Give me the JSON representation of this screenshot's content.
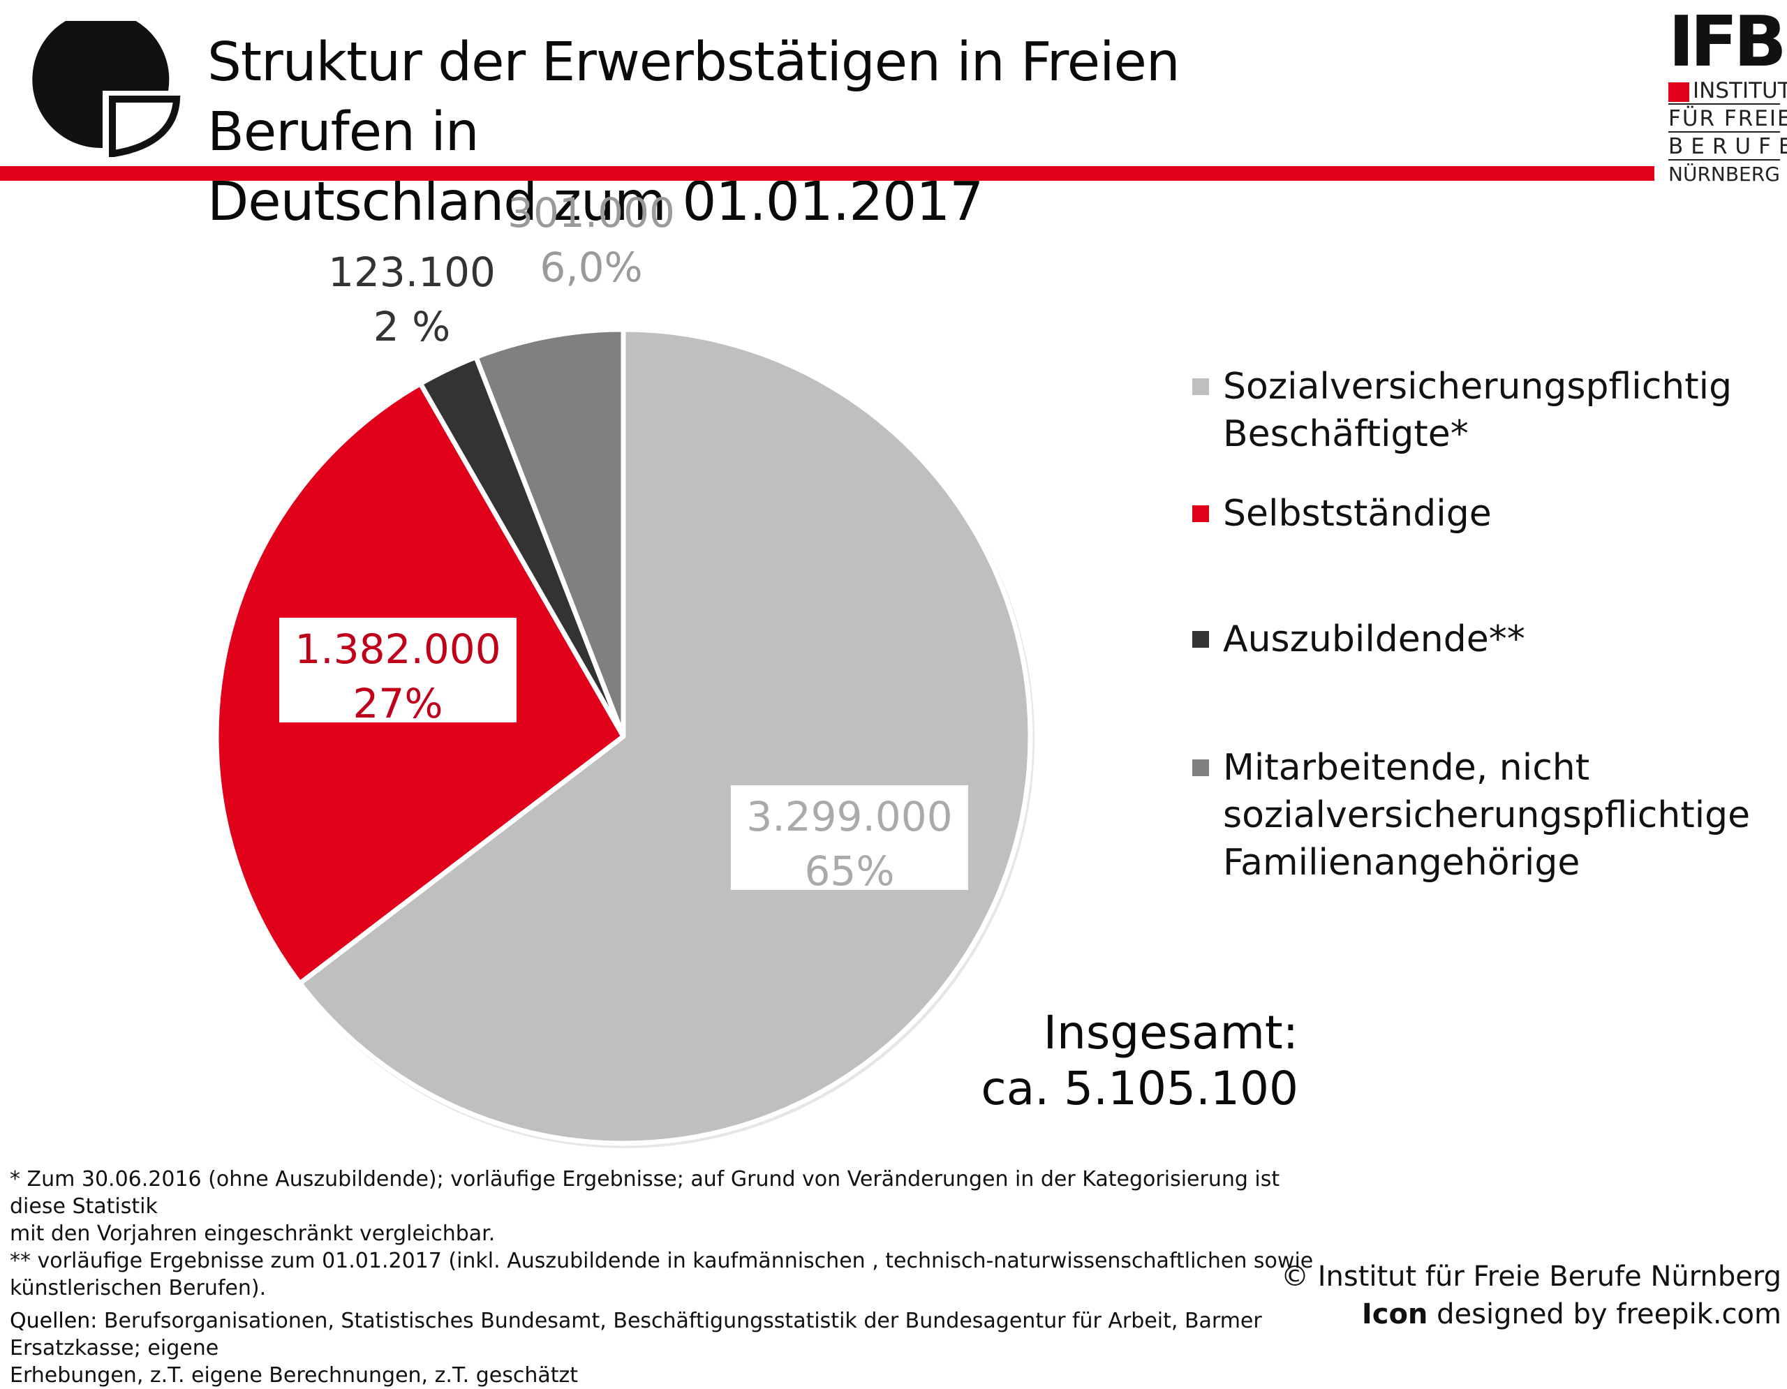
{
  "header": {
    "title_line1": "Struktur der Erwerbstätigen in Freien Berufen in",
    "title_line2": "Deutschland zum 01.01.2017",
    "accent_color": "#e1001a"
  },
  "logo_left": {
    "icon": "pie-d-logo-icon"
  },
  "ifb_logo": {
    "abbreviation": "IFB",
    "line1": "INSTITUT",
    "line2": "FÜR FREIE",
    "line3": "BERUFE",
    "line4": "NÜRNBERG"
  },
  "chart_data": {
    "type": "pie",
    "title": "Struktur der Erwerbstätigen in Freien Berufen in Deutschland zum 01.01.2017",
    "slices": [
      {
        "label": "Sozialversicherungspflichtig Beschäftigte*",
        "value": 3299000,
        "value_label": "3.299.000",
        "percent_label": "65%",
        "color": "#bfbfbf",
        "text_color": "#aaaaaa"
      },
      {
        "label": "Selbstständige",
        "value": 1382000,
        "value_label": "1.382.000",
        "percent_label": "27%",
        "color": "#e1001a",
        "text_color": "#c0001a"
      },
      {
        "label": "Auszubildende**",
        "value": 123100,
        "value_label": "123.100",
        "percent_label": "2 %",
        "color": "#333333",
        "text_color": "#333333"
      },
      {
        "label": "Mitarbeitende, nicht sozialversicherungspflichtige Familienangehörige",
        "value": 301000,
        "value_label": "301.000",
        "percent_label": "6,0%",
        "color": "#808080",
        "text_color": "#9a9a9a"
      }
    ],
    "legend_placement": "right",
    "total_label": "Insgesamt:",
    "total_value": "ca. 5.105.100"
  },
  "legend": {
    "items": [
      {
        "line1": "Sozialversicherungspflichtig",
        "line2": "Beschäftigte*",
        "line3": ""
      },
      {
        "line1": "Selbstständige",
        "line2": "",
        "line3": ""
      },
      {
        "line1": "Auszubildende**",
        "line2": "",
        "line3": ""
      },
      {
        "line1": "Mitarbeitende, nicht",
        "line2": "sozialversicherungspflichtige",
        "line3": "Familienangehörige"
      }
    ]
  },
  "footnotes": {
    "note1_line1": "* Zum 30.06.2016 (ohne Auszubildende); vorläufige Ergebnisse; auf Grund von Veränderungen in der Kategorisierung ist diese Statistik",
    "note1_line2": "mit den Vorjahren eingeschränkt vergleichbar.",
    "note2_line1": "** vorläufige Ergebnisse zum 01.01.2017 (inkl. Auszubildende in kaufmännischen , technisch-naturwissenschaftlichen sowie",
    "note2_line2": "künstlerischen Berufen).",
    "sources_label": "Quellen",
    "sources_line1": ": Berufsorganisationen, Statistisches Bundesamt, Beschäftigungsstatistik der Bundesagentur für Arbeit, Barmer Ersatzkasse; eigene",
    "sources_line2": "Erhebungen, z.T. eigene Berechnungen, z.T. geschätzt"
  },
  "credits": {
    "line1": "© Institut für Freie Berufe Nürnberg",
    "line2_bold": "Icon",
    "line2_rest": " designed by freepik.com"
  }
}
